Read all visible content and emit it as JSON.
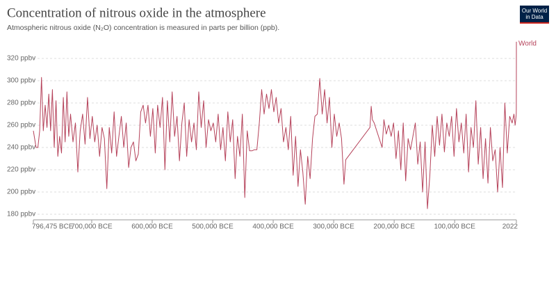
{
  "chart_data": {
    "type": "line",
    "title": "Concentration of nitrous oxide in the atmosphere",
    "subtitle": "Atmospheric nitrous oxide (N₂O) concentration is measured in parts per billion (ppb).",
    "logo": "Our World in Data",
    "xlim": [
      -796475,
      2022
    ],
    "xticks": [
      {
        "value": -796475,
        "label": "796,475 BCE"
      },
      {
        "value": -700000,
        "label": "700,000 BCE"
      },
      {
        "value": -600000,
        "label": "600,000 BCE"
      },
      {
        "value": -500000,
        "label": "500,000 BCE"
      },
      {
        "value": -400000,
        "label": "400,000 BCE"
      },
      {
        "value": -300000,
        "label": "300,000 BCE"
      },
      {
        "value": -200000,
        "label": "200,000 BCE"
      },
      {
        "value": -100000,
        "label": "100,000 BCE"
      },
      {
        "value": 2022,
        "label": "2022"
      }
    ],
    "ylim": [
      175,
      335
    ],
    "yticks": [
      {
        "value": 180,
        "label": "180 ppbv"
      },
      {
        "value": 200,
        "label": "200 ppbv"
      },
      {
        "value": 220,
        "label": "220 ppbv"
      },
      {
        "value": 240,
        "label": "240 ppbv"
      },
      {
        "value": 260,
        "label": "260 ppbv"
      },
      {
        "value": 280,
        "label": "280 ppbv"
      },
      {
        "value": 300,
        "label": "300 ppbv"
      },
      {
        "value": 320,
        "label": "320 ppbv"
      }
    ],
    "grid": true,
    "x": [
      -796475,
      -792000,
      -789000,
      -786000,
      -783000,
      -780000,
      -777000,
      -774000,
      -771000,
      -768000,
      -765000,
      -762000,
      -759000,
      -756000,
      -753000,
      -750000,
      -747000,
      -744000,
      -741000,
      -738000,
      -735000,
      -731000,
      -727000,
      -723000,
      -719000,
      -715000,
      -711000,
      -707000,
      -703000,
      -699000,
      -695000,
      -691000,
      -687000,
      -683000,
      -679000,
      -675000,
      -671000,
      -667000,
      -663000,
      -659000,
      -655000,
      -651000,
      -647000,
      -643000,
      -639000,
      -635000,
      -631000,
      -627000,
      -623000,
      -619000,
      -615000,
      -611000,
      -607000,
      -603000,
      -599000,
      -595000,
      -591000,
      -587000,
      -583000,
      -579000,
      -575000,
      -571000,
      -567000,
      -563000,
      -559000,
      -555000,
      -551000,
      -547000,
      -543000,
      -539000,
      -535000,
      -531000,
      -527000,
      -523000,
      -519000,
      -515000,
      -511000,
      -507000,
      -503000,
      -499000,
      -495000,
      -491000,
      -487000,
      -483000,
      -479000,
      -475000,
      -471000,
      -467000,
      -463000,
      -459000,
      -455000,
      -451000,
      -447000,
      -443000,
      -439000,
      -435000,
      -431000,
      -427000,
      -423000,
      -419000,
      -415000,
      -411000,
      -407000,
      -403000,
      -399000,
      -395000,
      -391000,
      -387000,
      -383000,
      -379000,
      -375000,
      -371000,
      -367000,
      -363000,
      -359000,
      -355000,
      -351000,
      -347000,
      -343000,
      -339000,
      -335000,
      -331000,
      -327000,
      -323000,
      -319000,
      -315000,
      -311000,
      -307000,
      -303000,
      -299000,
      -295000,
      -291000,
      -287000,
      -283000,
      -280000,
      -240000,
      -238000,
      -236000,
      -233000,
      -220000,
      -217000,
      -213000,
      -209000,
      -205000,
      -201000,
      -197000,
      -193000,
      -189000,
      -185000,
      -181000,
      -177000,
      -173000,
      -169000,
      -165000,
      -161000,
      -157000,
      -153000,
      -149000,
      -145000,
      -141000,
      -137000,
      -133000,
      -129000,
      -125000,
      -121000,
      -117000,
      -113000,
      -109000,
      -105000,
      -101000,
      -97000,
      -93000,
      -89000,
      -85000,
      -81000,
      -77000,
      -73000,
      -69000,
      -65000,
      -61000,
      -57000,
      -53000,
      -49000,
      -45000,
      -41000,
      -37000,
      -33000,
      -29000,
      -25000,
      -21000,
      -17000,
      -13000,
      -9000,
      -5000,
      -2000,
      0,
      1000,
      1800,
      1900,
      2000,
      2022
    ],
    "series": [
      {
        "name": "World",
        "color": "#b5425a",
        "values": [
          255,
          240,
          240,
          255,
          303,
          255,
          278,
          258,
          288,
          255,
          292,
          240,
          282,
          232,
          250,
          235,
          285,
          245,
          290,
          250,
          270,
          245,
          262,
          218,
          255,
          270,
          243,
          285,
          248,
          268,
          245,
          260,
          232,
          258,
          248,
          203,
          258,
          235,
          272,
          232,
          250,
          268,
          240,
          262,
          222,
          240,
          245,
          228,
          234,
          272,
          278,
          262,
          278,
          250,
          275,
          235,
          278,
          258,
          285,
          220,
          282,
          245,
          290,
          250,
          268,
          228,
          262,
          280,
          232,
          265,
          245,
          262,
          238,
          290,
          258,
          282,
          240,
          265,
          255,
          262,
          245,
          270,
          238,
          258,
          228,
          272,
          245,
          265,
          212,
          250,
          232,
          270,
          195,
          255,
          237,
          237,
          238,
          238,
          262,
          292,
          270,
          288,
          275,
          292,
          272,
          285,
          262,
          275,
          245,
          258,
          238,
          268,
          215,
          250,
          205,
          238,
          218,
          189,
          232,
          212,
          248,
          268,
          270,
          302,
          270,
          292,
          262,
          285,
          240,
          270,
          250,
          262,
          248,
          207,
          229,
          258,
          277,
          265,
          262,
          240,
          265,
          252,
          260,
          250,
          262,
          230,
          255,
          220,
          262,
          210,
          248,
          238,
          250,
          262,
          225,
          245,
          200,
          245,
          185,
          215,
          260,
          232,
          268,
          242,
          270,
          236,
          262,
          250,
          268,
          232,
          275,
          245,
          262,
          235,
          270,
          218,
          258,
          240,
          282,
          225,
          258,
          212,
          248,
          208,
          258,
          228,
          238,
          200,
          240,
          204,
          280,
          235,
          268,
          262,
          270,
          260,
          265,
          270,
          275,
          316,
          335
        ]
      }
    ]
  }
}
